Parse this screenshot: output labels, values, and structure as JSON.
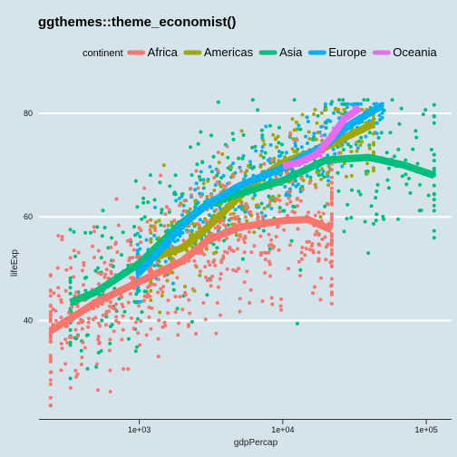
{
  "chart_data": {
    "type": "scatter",
    "title": "ggthemes::theme_economist()",
    "xlabel": "gdpPercap",
    "ylabel": "lifeExp",
    "x_scale": "log10",
    "xlim": [
      200,
      150000
    ],
    "ylim": [
      21,
      87
    ],
    "x_ticks": [
      1000,
      10000,
      100000
    ],
    "x_tick_labels": [
      "1e+03",
      "1e+04",
      "1e+05"
    ],
    "y_ticks": [
      40,
      60,
      80
    ],
    "y_tick_labels": [
      "40",
      "60",
      "80"
    ],
    "grid": "horizontal",
    "legend": {
      "title": "continent",
      "position": "top"
    },
    "background": "#d5e4eb",
    "series": [
      {
        "name": "Africa",
        "color": "#f8766d",
        "point_count": 624,
        "x_range": [
          241,
          21951
        ],
        "y_range": [
          23.6,
          76.4
        ],
        "smooth": [
          [
            241,
            38
          ],
          [
            500,
            43.5
          ],
          [
            1000,
            47.5
          ],
          [
            2000,
            51.5
          ],
          [
            3000,
            55.5
          ],
          [
            5000,
            58
          ],
          [
            10000,
            59.3
          ],
          [
            15000,
            59.5
          ],
          [
            21951,
            57.5
          ]
        ]
      },
      {
        "name": "Americas",
        "color": "#a3a500",
        "point_count": 300,
        "x_range": [
          1202,
          42952
        ],
        "y_range": [
          37.6,
          80.7
        ],
        "smooth": [
          [
            1202,
            52
          ],
          [
            2000,
            54
          ],
          [
            3000,
            58
          ],
          [
            5000,
            64
          ],
          [
            7000,
            67.5
          ],
          [
            10000,
            70.5
          ],
          [
            20000,
            73.5
          ],
          [
            42952,
            78
          ]
        ]
      },
      {
        "name": "Asia",
        "color": "#00bf7d",
        "point_count": 396,
        "x_range": [
          331,
          113523
        ],
        "y_range": [
          28.8,
          82.6
        ],
        "smooth": [
          [
            331,
            43.5
          ],
          [
            500,
            45.5
          ],
          [
            1000,
            51
          ],
          [
            2000,
            59
          ],
          [
            3000,
            62.5
          ],
          [
            5000,
            64.5
          ],
          [
            10000,
            67
          ],
          [
            20000,
            71
          ],
          [
            40000,
            71.5
          ],
          [
            70000,
            70
          ],
          [
            113523,
            68
          ]
        ]
      },
      {
        "name": "Europe",
        "color": "#00b0f6",
        "point_count": 360,
        "x_range": [
          974,
          49357
        ],
        "y_range": [
          43.6,
          81.8
        ],
        "smooth": [
          [
            974,
            49
          ],
          [
            1500,
            54.5
          ],
          [
            2000,
            58.5
          ],
          [
            3000,
            62.5
          ],
          [
            5000,
            66
          ],
          [
            10000,
            69.5
          ],
          [
            20000,
            74
          ],
          [
            30000,
            78
          ],
          [
            49357,
            81.5
          ]
        ]
      },
      {
        "name": "Oceania",
        "color": "#e76bf3",
        "point_count": 24,
        "x_range": [
          10040,
          34435
        ],
        "y_range": [
          69.1,
          81.2
        ],
        "smooth": [
          [
            10040,
            69.8
          ],
          [
            13000,
            70.5
          ],
          [
            17000,
            72
          ],
          [
            22000,
            75.5
          ],
          [
            27000,
            79
          ],
          [
            34435,
            81
          ]
        ]
      }
    ]
  }
}
